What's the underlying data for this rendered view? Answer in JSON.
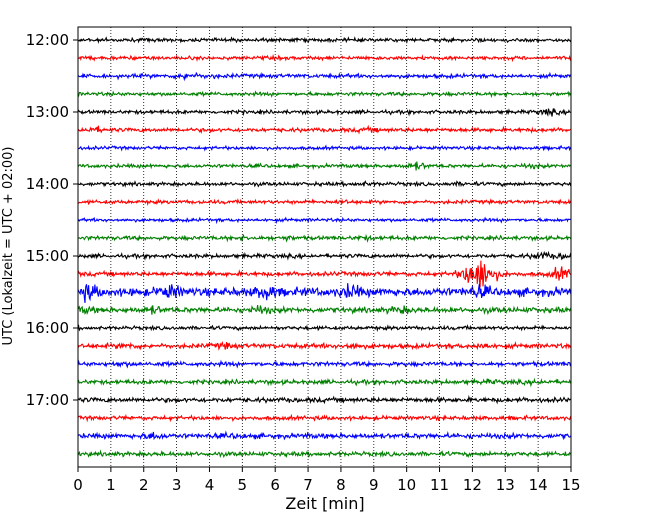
{
  "chart_data": {
    "type": "line",
    "chart_kind": "helicorder (seismogram drum plot)",
    "xlabel": "Zeit  [min]",
    "ylabel": "UTC (Lokalzeit = UTC + 02:00)",
    "xlim": [
      0,
      15
    ],
    "x_ticks": [
      "0",
      "1",
      "2",
      "3",
      "4",
      "5",
      "6",
      "7",
      "8",
      "9",
      "10",
      "11",
      "12",
      "13",
      "14",
      "15"
    ],
    "y_tick_labels": [
      "12:00",
      "13:00",
      "14:00",
      "15:00",
      "16:00",
      "17:00"
    ],
    "vertical_grid": "dotted, every minute",
    "trace_minutes": 15,
    "color_cycle": [
      "#000000",
      "#ff0000",
      "#0000ff",
      "#008000"
    ],
    "traces": [
      {
        "start": "12:00",
        "color": "black",
        "level": 1.0,
        "events": []
      },
      {
        "start": "12:15",
        "color": "red",
        "level": 1.0,
        "events": []
      },
      {
        "start": "12:30",
        "color": "blue",
        "level": 1.1,
        "events": [
          {
            "minute": 3.3,
            "amp": 2.2
          },
          {
            "minute": 4.0,
            "amp": 1.5
          }
        ]
      },
      {
        "start": "12:45",
        "color": "green",
        "level": 1.0,
        "events": []
      },
      {
        "start": "13:00",
        "color": "black",
        "level": 1.0,
        "events": [
          {
            "minute": 14.3,
            "amp": 2.2
          }
        ]
      },
      {
        "start": "13:15",
        "color": "red",
        "level": 1.1,
        "events": [
          {
            "minute": 0.5,
            "amp": 2.0
          },
          {
            "minute": 8.8,
            "amp": 1.5
          }
        ]
      },
      {
        "start": "13:30",
        "color": "blue",
        "level": 0.9,
        "events": []
      },
      {
        "start": "13:45",
        "color": "green",
        "level": 1.0,
        "events": [
          {
            "minute": 10.3,
            "amp": 2.5
          },
          {
            "minute": 13.8,
            "amp": 1.5
          }
        ]
      },
      {
        "start": "14:00",
        "color": "black",
        "level": 1.0,
        "events": [
          {
            "minute": 8.7,
            "amp": 1.6
          },
          {
            "minute": 11.7,
            "amp": 1.5
          }
        ]
      },
      {
        "start": "14:15",
        "color": "red",
        "level": 1.0,
        "events": [
          {
            "minute": 8.0,
            "amp": 1.6
          }
        ]
      },
      {
        "start": "14:30",
        "color": "blue",
        "level": 0.9,
        "events": []
      },
      {
        "start": "14:45",
        "color": "green",
        "level": 1.1,
        "events": [
          {
            "minute": 5.1,
            "amp": 1.6
          },
          {
            "minute": 6.3,
            "amp": 1.6
          },
          {
            "minute": 8.7,
            "amp": 1.5
          }
        ]
      },
      {
        "start": "15:00",
        "color": "black",
        "level": 1.1,
        "events": [
          {
            "minute": 14.1,
            "amp": 2.5
          },
          {
            "minute": 14.8,
            "amp": 2.0
          }
        ]
      },
      {
        "start": "15:15",
        "color": "red",
        "level": 1.2,
        "events": [
          {
            "minute": 12.2,
            "amp": 10.0
          },
          {
            "minute": 14.7,
            "amp": 4.0
          }
        ]
      },
      {
        "start": "15:30",
        "color": "blue",
        "level": 2.4,
        "events": [
          {
            "minute": 0.3,
            "amp": 4.0
          },
          {
            "minute": 2.8,
            "amp": 3.5
          },
          {
            "minute": 5.7,
            "amp": 4.0
          },
          {
            "minute": 8.3,
            "amp": 3.5
          },
          {
            "minute": 12.2,
            "amp": 3.0
          }
        ]
      },
      {
        "start": "15:45",
        "color": "green",
        "level": 1.5,
        "events": [
          {
            "minute": 0.2,
            "amp": 2.0
          },
          {
            "minute": 2.3,
            "amp": 2.2
          },
          {
            "minute": 5.5,
            "amp": 2.5
          },
          {
            "minute": 9.8,
            "amp": 2.2
          }
        ]
      },
      {
        "start": "16:00",
        "color": "black",
        "level": 1.0,
        "events": []
      },
      {
        "start": "16:15",
        "color": "red",
        "level": 1.3,
        "events": [
          {
            "minute": 1.5,
            "amp": 1.8
          },
          {
            "minute": 4.5,
            "amp": 1.8
          },
          {
            "minute": 8.3,
            "amp": 2.0
          },
          {
            "minute": 12.3,
            "amp": 2.0
          }
        ]
      },
      {
        "start": "16:30",
        "color": "blue",
        "level": 1.2,
        "events": [
          {
            "minute": 1.3,
            "amp": 1.5
          }
        ]
      },
      {
        "start": "16:45",
        "color": "green",
        "level": 1.2,
        "events": [
          {
            "minute": 12.5,
            "amp": 1.5
          },
          {
            "minute": 14.0,
            "amp": 1.5
          }
        ]
      },
      {
        "start": "17:00",
        "color": "black",
        "level": 1.3,
        "events": []
      },
      {
        "start": "17:15",
        "color": "red",
        "level": 1.1,
        "events": []
      },
      {
        "start": "17:30",
        "color": "blue",
        "level": 1.4,
        "events": [
          {
            "minute": 2.3,
            "amp": 2.2
          },
          {
            "minute": 4.8,
            "amp": 1.5
          }
        ]
      },
      {
        "start": "17:45",
        "color": "green",
        "level": 1.2,
        "events": []
      }
    ]
  }
}
